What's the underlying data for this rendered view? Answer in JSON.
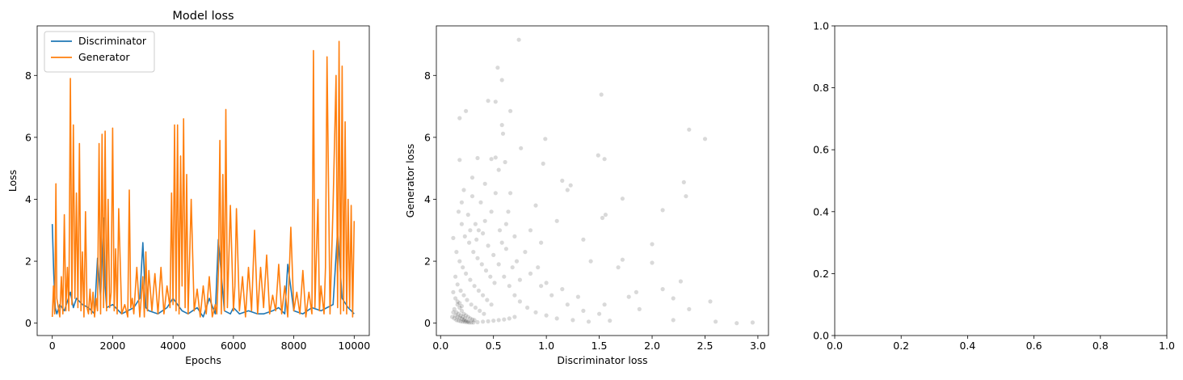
{
  "chart_data": [
    {
      "type": "line",
      "title": "Model loss",
      "xlabel": "Epochs",
      "ylabel": "Loss",
      "xlim": [
        -500,
        10500
      ],
      "ylim": [
        -0.4,
        9.6
      ],
      "xticks": [
        0,
        2000,
        4000,
        6000,
        8000,
        10000
      ],
      "yticks": [
        0,
        2,
        4,
        6,
        8
      ],
      "legend": "upper-left",
      "grid": false,
      "series": [
        {
          "name": "Discriminator",
          "color": "#1f77b4",
          "x": [
            0,
            50,
            100,
            150,
            250,
            400,
            600,
            700,
            800,
            1000,
            1200,
            1400,
            1500,
            1600,
            1700,
            1750,
            1800,
            2000,
            2300,
            2500,
            2700,
            2900,
            3000,
            3100,
            3200,
            3500,
            3800,
            4000,
            4300,
            4500,
            4800,
            5000,
            5200,
            5400,
            5500,
            5700,
            5900,
            6000,
            6200,
            6500,
            6800,
            7000,
            7300,
            7500,
            7700,
            7800,
            8000,
            8300,
            8600,
            8900,
            9100,
            9300,
            9450,
            9600,
            9800,
            10000
          ],
          "y": [
            3.2,
            1.6,
            0.5,
            0.3,
            0.6,
            0.4,
            1.0,
            0.5,
            0.8,
            0.6,
            0.5,
            0.3,
            2.1,
            0.8,
            3.4,
            1.2,
            0.5,
            0.6,
            0.3,
            0.4,
            0.5,
            0.8,
            2.6,
            0.5,
            0.4,
            0.3,
            0.5,
            0.8,
            0.4,
            0.3,
            0.5,
            0.2,
            0.8,
            0.3,
            2.7,
            0.4,
            0.3,
            0.5,
            0.3,
            0.4,
            0.3,
            0.3,
            0.4,
            0.5,
            0.3,
            1.9,
            0.4,
            0.3,
            0.5,
            0.4,
            0.5,
            0.6,
            3.0,
            0.8,
            0.5,
            0.3
          ]
        },
        {
          "name": "Generator",
          "color": "#ff7f0e",
          "x": [
            0,
            40,
            80,
            120,
            150,
            200,
            250,
            300,
            350,
            400,
            450,
            500,
            550,
            600,
            650,
            700,
            750,
            800,
            850,
            900,
            950,
            1000,
            1050,
            1100,
            1150,
            1200,
            1250,
            1300,
            1350,
            1400,
            1450,
            1500,
            1550,
            1600,
            1650,
            1700,
            1750,
            1800,
            1850,
            1900,
            1950,
            2000,
            2050,
            2100,
            2150,
            2200,
            2300,
            2400,
            2500,
            2550,
            2600,
            2650,
            2700,
            2800,
            2900,
            3000,
            3050,
            3100,
            3150,
            3200,
            3300,
            3400,
            3500,
            3600,
            3700,
            3800,
            3900,
            3950,
            4000,
            4050,
            4100,
            4150,
            4200,
            4250,
            4300,
            4350,
            4400,
            4450,
            4500,
            4600,
            4700,
            4800,
            4900,
            5000,
            5100,
            5200,
            5300,
            5400,
            5450,
            5500,
            5550,
            5600,
            5650,
            5700,
            5750,
            5800,
            5900,
            6000,
            6050,
            6100,
            6200,
            6300,
            6400,
            6500,
            6600,
            6700,
            6800,
            6900,
            7000,
            7100,
            7200,
            7300,
            7400,
            7500,
            7600,
            7700,
            7800,
            7900,
            8000,
            8100,
            8200,
            8300,
            8400,
            8500,
            8600,
            8650,
            8700,
            8800,
            8850,
            8900,
            9000,
            9050,
            9100,
            9200,
            9300,
            9400,
            9450,
            9500,
            9550,
            9600,
            9650,
            9700,
            9750,
            9800,
            9850,
            9900,
            9950,
            10000
          ],
          "y": [
            0.2,
            1.2,
            0.3,
            4.5,
            0.8,
            0.5,
            0.2,
            1.5,
            0.3,
            3.5,
            0.4,
            1.8,
            0.4,
            7.9,
            0.6,
            6.4,
            0.8,
            4.2,
            0.5,
            5.8,
            0.4,
            2.3,
            0.2,
            3.6,
            0.5,
            0.3,
            1.1,
            0.3,
            1.0,
            0.2,
            0.8,
            0.4,
            5.8,
            0.3,
            6.1,
            0.5,
            6.2,
            0.4,
            4.0,
            0.5,
            1.0,
            6.3,
            0.4,
            2.4,
            0.3,
            3.7,
            0.3,
            0.6,
            0.2,
            4.3,
            0.5,
            0.8,
            0.3,
            1.8,
            0.2,
            1.5,
            0.2,
            2.3,
            0.4,
            1.7,
            0.4,
            1.6,
            0.3,
            1.8,
            0.3,
            1.2,
            0.5,
            4.2,
            0.6,
            6.4,
            0.4,
            6.4,
            0.3,
            5.4,
            1.2,
            6.6,
            0.5,
            4.8,
            0.3,
            4.0,
            0.4,
            1.1,
            0.2,
            1.2,
            0.3,
            1.5,
            0.2,
            0.6,
            0.3,
            1.6,
            5.9,
            0.3,
            4.8,
            0.4,
            6.9,
            0.5,
            3.8,
            0.4,
            1.2,
            3.7,
            0.4,
            1.5,
            0.2,
            1.8,
            0.4,
            3.0,
            0.3,
            1.8,
            0.5,
            2.2,
            0.3,
            0.9,
            0.4,
            1.9,
            0.3,
            1.2,
            0.2,
            3.1,
            0.4,
            1.0,
            0.3,
            1.7,
            0.2,
            1.0,
            0.3,
            8.8,
            0.5,
            4.0,
            0.4,
            1.2,
            0.3,
            1.8,
            8.6,
            0.3,
            3.8,
            8.0,
            0.5,
            9.1,
            0.3,
            8.3,
            0.4,
            6.5,
            0.3,
            4.0,
            0.5,
            3.8,
            0.2,
            3.3
          ]
        }
      ]
    },
    {
      "type": "scatter",
      "title": "",
      "xlabel": "Discriminator loss",
      "ylabel": "Generator loss",
      "xlim": [
        -0.04,
        3.1
      ],
      "ylim": [
        -0.4,
        9.6
      ],
      "xticks": [
        0.0,
        0.5,
        1.0,
        1.5,
        2.0,
        2.5,
        3.0
      ],
      "yticks": [
        0,
        2,
        4,
        6,
        8
      ],
      "grid": false,
      "color": "#000000",
      "alpha": 0.15,
      "points": [
        [
          0.74,
          9.15
        ],
        [
          0.54,
          8.25
        ],
        [
          0.58,
          7.85
        ],
        [
          0.52,
          7.15
        ],
        [
          0.45,
          7.18
        ],
        [
          0.66,
          6.85
        ],
        [
          0.24,
          6.85
        ],
        [
          0.18,
          6.62
        ],
        [
          0.58,
          6.4
        ],
        [
          0.59,
          6.12
        ],
        [
          1.52,
          7.38
        ],
        [
          2.35,
          6.25
        ],
        [
          2.5,
          5.95
        ],
        [
          0.99,
          5.95
        ],
        [
          0.76,
          5.65
        ],
        [
          0.48,
          5.3
        ],
        [
          0.52,
          5.35
        ],
        [
          0.61,
          5.2
        ],
        [
          0.97,
          5.15
        ],
        [
          0.18,
          5.27
        ],
        [
          0.35,
          5.33
        ],
        [
          1.49,
          5.42
        ],
        [
          1.55,
          5.3
        ],
        [
          0.55,
          4.95
        ],
        [
          1.15,
          4.6
        ],
        [
          1.2,
          4.3
        ],
        [
          1.23,
          4.45
        ],
        [
          0.66,
          4.2
        ],
        [
          0.52,
          4.2
        ],
        [
          0.3,
          4.7
        ],
        [
          0.42,
          4.5
        ],
        [
          1.72,
          4.02
        ],
        [
          2.1,
          3.65
        ],
        [
          2.3,
          4.55
        ],
        [
          2.32,
          4.1
        ],
        [
          1.56,
          3.5
        ],
        [
          1.53,
          3.4
        ],
        [
          0.9,
          3.8
        ],
        [
          1.1,
          3.3
        ],
        [
          0.85,
          3.0
        ],
        [
          0.95,
          2.6
        ],
        [
          1.35,
          2.7
        ],
        [
          2.0,
          2.55
        ],
        [
          1.72,
          2.05
        ],
        [
          1.42,
          2.0
        ],
        [
          1.68,
          1.8
        ],
        [
          2.0,
          1.95
        ],
        [
          2.27,
          1.35
        ],
        [
          2.1,
          1.1
        ],
        [
          1.85,
          1.0
        ],
        [
          1.78,
          0.85
        ],
        [
          2.2,
          0.8
        ],
        [
          2.35,
          0.45
        ],
        [
          2.55,
          0.7
        ],
        [
          2.6,
          0.05
        ],
        [
          2.8,
          0.0
        ],
        [
          2.95,
          0.02
        ],
        [
          2.2,
          0.1
        ],
        [
          1.88,
          0.45
        ],
        [
          1.55,
          0.6
        ],
        [
          1.3,
          0.85
        ],
        [
          1.15,
          1.1
        ],
        [
          1.0,
          1.3
        ],
        [
          0.92,
          1.8
        ],
        [
          0.8,
          2.3
        ],
        [
          0.7,
          2.8
        ],
        [
          0.62,
          3.2
        ],
        [
          0.48,
          3.6
        ],
        [
          0.38,
          3.9
        ],
        [
          0.3,
          4.1
        ],
        [
          0.22,
          4.3
        ],
        [
          0.2,
          3.9
        ],
        [
          0.26,
          3.5
        ],
        [
          0.33,
          3.2
        ],
        [
          0.4,
          2.9
        ],
        [
          0.45,
          2.5
        ],
        [
          0.5,
          2.2
        ],
        [
          0.55,
          1.9
        ],
        [
          0.6,
          1.5
        ],
        [
          0.65,
          1.2
        ],
        [
          0.7,
          0.9
        ],
        [
          0.75,
          0.7
        ],
        [
          0.82,
          0.5
        ],
        [
          0.9,
          0.35
        ],
        [
          1.0,
          0.25
        ],
        [
          1.1,
          0.15
        ],
        [
          1.25,
          0.1
        ],
        [
          1.4,
          0.05
        ],
        [
          1.6,
          0.08
        ],
        [
          0.17,
          3.6
        ],
        [
          0.2,
          3.2
        ],
        [
          0.23,
          2.8
        ],
        [
          0.27,
          2.6
        ],
        [
          0.31,
          2.3
        ],
        [
          0.35,
          2.1
        ],
        [
          0.39,
          1.9
        ],
        [
          0.43,
          1.7
        ],
        [
          0.47,
          1.5
        ],
        [
          0.51,
          1.3
        ],
        [
          0.12,
          2.75
        ],
        [
          0.15,
          2.3
        ],
        [
          0.18,
          2.0
        ],
        [
          0.21,
          1.8
        ],
        [
          0.24,
          1.6
        ],
        [
          0.28,
          1.4
        ],
        [
          0.32,
          1.2
        ],
        [
          0.36,
          1.05
        ],
        [
          0.4,
          0.9
        ],
        [
          0.44,
          0.75
        ],
        [
          0.48,
          0.6
        ],
        [
          0.14,
          1.5
        ],
        [
          0.16,
          1.25
        ],
        [
          0.19,
          1.05
        ],
        [
          0.22,
          0.9
        ],
        [
          0.25,
          0.75
        ],
        [
          0.29,
          0.6
        ],
        [
          0.33,
          0.5
        ],
        [
          0.37,
          0.4
        ],
        [
          0.41,
          0.3
        ],
        [
          0.12,
          1.0
        ],
        [
          0.14,
          0.8
        ],
        [
          0.16,
          0.6
        ],
        [
          0.18,
          0.5
        ],
        [
          0.2,
          0.4
        ],
        [
          0.22,
          0.3
        ],
        [
          0.24,
          0.25
        ],
        [
          0.26,
          0.2
        ],
        [
          0.28,
          0.15
        ],
        [
          0.3,
          0.12
        ],
        [
          0.32,
          0.1
        ],
        [
          0.11,
          0.2
        ],
        [
          0.13,
          0.15
        ],
        [
          0.15,
          0.1
        ],
        [
          0.17,
          0.08
        ],
        [
          0.19,
          0.06
        ],
        [
          0.21,
          0.05
        ],
        [
          0.23,
          0.04
        ],
        [
          0.25,
          0.03
        ],
        [
          0.27,
          0.02
        ],
        [
          0.29,
          0.02
        ],
        [
          0.31,
          0.02
        ],
        [
          0.35,
          0.03
        ],
        [
          0.4,
          0.05
        ],
        [
          0.45,
          0.06
        ],
        [
          0.5,
          0.08
        ],
        [
          0.55,
          0.1
        ],
        [
          0.6,
          0.12
        ],
        [
          0.65,
          0.15
        ],
        [
          0.7,
          0.2
        ],
        [
          0.13,
          0.45
        ],
        [
          0.15,
          0.35
        ],
        [
          0.17,
          0.3
        ],
        [
          0.19,
          0.25
        ],
        [
          0.21,
          0.2
        ],
        [
          0.23,
          0.15
        ],
        [
          0.16,
          0.7
        ],
        [
          0.18,
          0.65
        ],
        [
          0.2,
          0.55
        ],
        [
          0.12,
          0.35
        ],
        [
          0.14,
          0.25
        ],
        [
          0.16,
          0.2
        ],
        [
          0.18,
          0.18
        ],
        [
          0.2,
          0.14
        ],
        [
          0.22,
          0.1
        ],
        [
          0.24,
          0.08
        ],
        [
          0.26,
          0.06
        ],
        [
          0.85,
          1.6
        ],
        [
          0.95,
          1.2
        ],
        [
          1.05,
          0.9
        ],
        [
          1.2,
          0.6
        ],
        [
          1.35,
          0.4
        ],
        [
          1.5,
          0.3
        ],
        [
          0.75,
          1.4
        ],
        [
          0.68,
          1.8
        ],
        [
          0.58,
          2.6
        ],
        [
          0.62,
          2.4
        ],
        [
          0.72,
          2.0
        ],
        [
          0.42,
          3.3
        ],
        [
          0.36,
          3.0
        ],
        [
          0.28,
          3.0
        ],
        [
          0.34,
          2.7
        ],
        [
          0.56,
          3.0
        ],
        [
          0.64,
          3.6
        ]
      ]
    },
    {
      "type": "scatter",
      "title": "",
      "xlabel": "",
      "ylabel": "",
      "xlim": [
        0,
        1
      ],
      "ylim": [
        0,
        1
      ],
      "xticks": [
        0.0,
        0.2,
        0.4,
        0.6,
        0.8,
        1.0
      ],
      "yticks": [
        0.0,
        0.2,
        0.4,
        0.6,
        0.8,
        1.0
      ],
      "grid": false,
      "points": []
    }
  ]
}
